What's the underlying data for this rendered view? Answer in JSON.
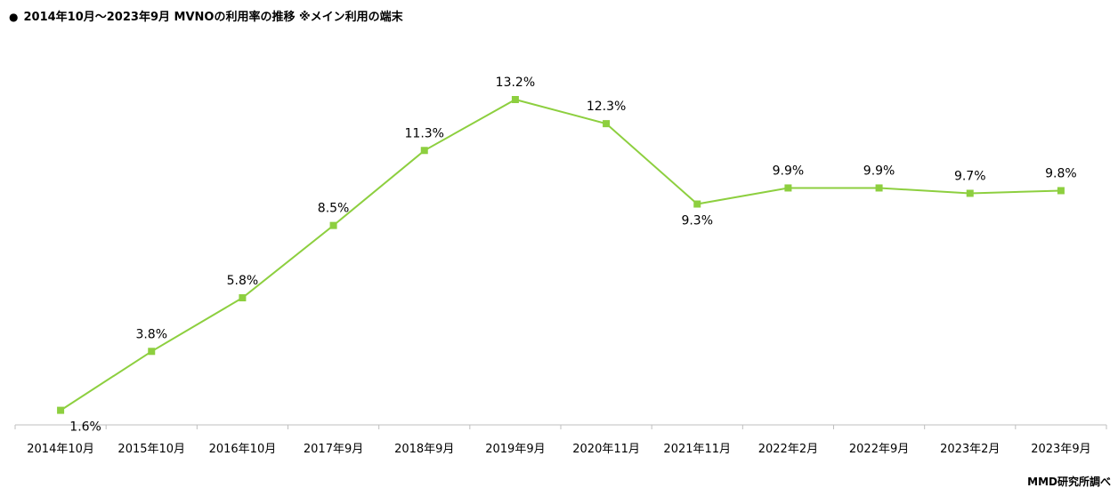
{
  "title_text": "2014年10月～2023年9月  MVNOの利用率の推移 ※メイン利用の端末",
  "credit": "MMD研究所調べ",
  "colors": {
    "series": "#8dcf3f",
    "axis": "#bfbfbf"
  },
  "chart_data": {
    "type": "line",
    "title": "2014年10月～2023年9月  MVNOの利用率の推移 ※メイン利用の端末",
    "categories": [
      "2014年10月",
      "2015年10月",
      "2016年10月",
      "2017年9月",
      "2018年9月",
      "2019年9月",
      "2020年11月",
      "2021年11月",
      "2022年2月",
      "2022年9月",
      "2023年2月",
      "2023年9月"
    ],
    "values": [
      1.6,
      3.8,
      5.8,
      8.5,
      11.3,
      13.2,
      12.3,
      9.3,
      9.9,
      9.9,
      9.7,
      9.8
    ],
    "labels": [
      "1.6%",
      "3.8%",
      "5.8%",
      "8.5%",
      "11.3%",
      "13.2%",
      "12.3%",
      "9.3%",
      "9.9%",
      "9.9%",
      "9.7%",
      "9.8%"
    ],
    "grid": false,
    "legend": "none"
  }
}
